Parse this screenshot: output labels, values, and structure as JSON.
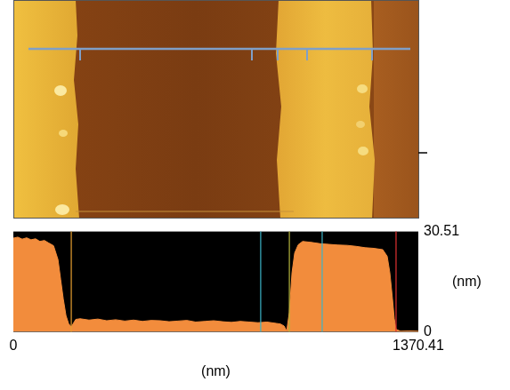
{
  "chart_data": {
    "type": "area",
    "color": "#f28c3c",
    "x": [
      0,
      15,
      30,
      45,
      60,
      75,
      90,
      105,
      120,
      136,
      151,
      160,
      169,
      178,
      187,
      196,
      211,
      226,
      256,
      286,
      316,
      346,
      377,
      407,
      437,
      467,
      497,
      527,
      557,
      587,
      617,
      648,
      678,
      708,
      738,
      768,
      798,
      828,
      858,
      889,
      904,
      916,
      925,
      934,
      943,
      952,
      964,
      979,
      1009,
      1039,
      1069,
      1099,
      1130,
      1160,
      1190,
      1220,
      1250,
      1265,
      1274,
      1283,
      1289,
      1295,
      1310,
      1340,
      1370.41
    ],
    "values": [
      28.5,
      28.8,
      28.2,
      28.6,
      28.0,
      28.3,
      27.5,
      27.8,
      27.0,
      26.2,
      22.0,
      16.0,
      10.0,
      5.0,
      2.5,
      1.5,
      3.8,
      4.0,
      3.6,
      3.9,
      3.4,
      3.7,
      3.3,
      3.6,
      3.2,
      3.5,
      3.4,
      3.1,
      3.3,
      3.5,
      3.0,
      3.2,
      3.4,
      3.1,
      2.9,
      3.2,
      3.0,
      2.8,
      3.0,
      2.6,
      2.4,
      1.8,
      0.3,
      6.0,
      18.0,
      24.0,
      26.5,
      27.5,
      27.2,
      26.8,
      26.6,
      26.4,
      26.3,
      26.0,
      25.6,
      25.4,
      25.0,
      23.0,
      18.0,
      10.0,
      4.0,
      0.8,
      0.2,
      0.3,
      0.2
    ],
    "xlim": [
      0,
      1370.41
    ],
    "xticks": [
      0,
      1370.41
    ],
    "ylim": [
      0,
      30.51
    ],
    "yticks": [
      0,
      30.51
    ],
    "x_label": "(nm)",
    "y_label": "(nm)",
    "grid": false,
    "cursors": [
      {
        "x": 196,
        "color": "#e8a030"
      },
      {
        "x": 837,
        "color": "#3cb4c8"
      },
      {
        "x": 934,
        "color": "#b4b43c"
      },
      {
        "x": 1045,
        "color": "#3cb4c8"
      },
      {
        "x": 1295,
        "color": "#e03030"
      }
    ]
  }
}
